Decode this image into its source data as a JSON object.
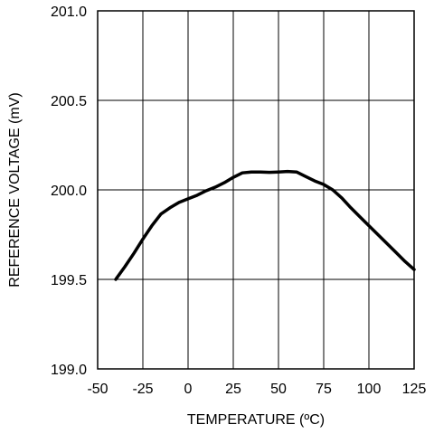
{
  "chart_data": {
    "type": "line",
    "title": "",
    "xlabel": "TEMPERATURE (ºC)",
    "ylabel": "REFERENCE VOLTAGE (mV)",
    "xlim": [
      -50,
      125
    ],
    "ylim": [
      199.0,
      201.0
    ],
    "x_ticks": [
      -50,
      -25,
      0,
      25,
      50,
      75,
      100,
      125
    ],
    "y_ticks": [
      199.0,
      199.5,
      200.0,
      200.5,
      201.0
    ],
    "x_tick_labels": [
      "-50",
      "-25",
      "0",
      "25",
      "50",
      "75",
      "100",
      "125"
    ],
    "y_tick_labels": [
      "199.0",
      "199.5",
      "200.0",
      "200.5",
      "201.0"
    ],
    "grid": true,
    "line_color": "#000000",
    "series": [
      {
        "x": [
          -40,
          -35,
          -30,
          -25,
          -20,
          -15,
          -10,
          -5,
          0,
          5,
          10,
          15,
          20,
          25,
          30,
          35,
          40,
          45,
          50,
          55,
          60,
          65,
          70,
          75,
          80,
          85,
          90,
          95,
          100,
          105,
          110,
          115,
          120,
          125
        ],
        "y": [
          199.5,
          199.57,
          199.645,
          199.725,
          199.8,
          199.865,
          199.9,
          199.93,
          199.95,
          199.97,
          199.995,
          200.015,
          200.04,
          200.07,
          200.095,
          200.1,
          200.1,
          200.098,
          200.1,
          200.103,
          200.1,
          200.075,
          200.05,
          200.03,
          200.0,
          199.955,
          199.9,
          199.85,
          199.8,
          199.75,
          199.7,
          199.65,
          199.6,
          199.555
        ]
      }
    ]
  }
}
